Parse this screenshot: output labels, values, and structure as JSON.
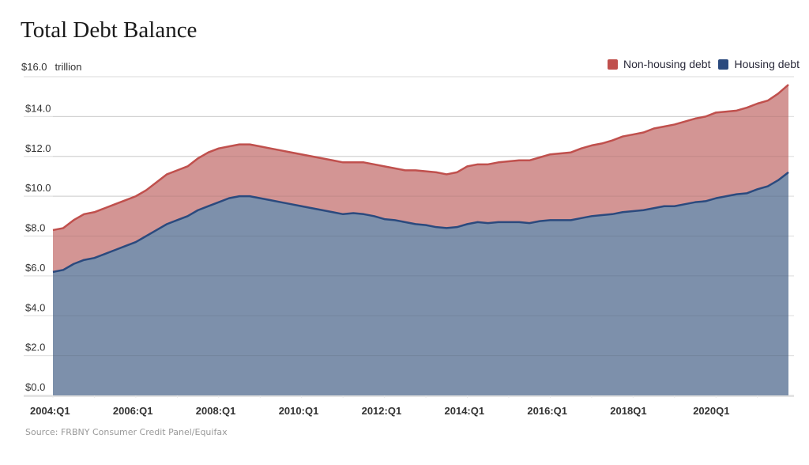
{
  "chart_data": {
    "type": "area",
    "stacked": true,
    "title": "Total Debt Balance",
    "ylabel_unit": "trillion",
    "xlabel": "",
    "ylim": [
      0,
      16
    ],
    "yticks": [
      "$0.0",
      "$2.0",
      "$4.0",
      "$6.0",
      "$8.0",
      "$10.0",
      "$12.0",
      "$14.0",
      "$16.0"
    ],
    "ytick_values": [
      0,
      2,
      4,
      6,
      8,
      10,
      12,
      14,
      16
    ],
    "xticks": [
      "2004:Q1",
      "2006:Q1",
      "2008:Q1",
      "2010:Q1",
      "2012:Q1",
      "2014:Q1",
      "2016:Q1",
      "2018Q1",
      "2020Q1"
    ],
    "xtick_index": [
      0,
      8,
      16,
      24,
      32,
      40,
      48,
      56,
      64
    ],
    "x_start": "2004Q1",
    "x_end": "2021Q4",
    "grid": true,
    "legend_position": "top-right",
    "source": "Source: FRBNY Consumer Credit Panel/Equifax",
    "colors": {
      "non_housing_fill": "#d39594",
      "non_housing_line": "#c0504d",
      "housing_fill": "#7d90ab",
      "housing_line": "#2b4a7e",
      "legend_non_housing": "#c0504d",
      "legend_housing": "#2b4a7e"
    },
    "series": [
      {
        "name": "Housing debt",
        "values": [
          6.2,
          6.3,
          6.6,
          6.8,
          6.9,
          7.1,
          7.3,
          7.5,
          7.7,
          8.0,
          8.3,
          8.6,
          8.8,
          9.0,
          9.3,
          9.5,
          9.7,
          9.9,
          10.0,
          10.0,
          9.9,
          9.8,
          9.7,
          9.6,
          9.5,
          9.4,
          9.3,
          9.2,
          9.1,
          9.15,
          9.1,
          9.0,
          8.85,
          8.8,
          8.7,
          8.6,
          8.55,
          8.45,
          8.4,
          8.45,
          8.6,
          8.7,
          8.65,
          8.7,
          8.7,
          8.7,
          8.65,
          8.75,
          8.8,
          8.8,
          8.8,
          8.9,
          9.0,
          9.05,
          9.1,
          9.2,
          9.25,
          9.3,
          9.4,
          9.5,
          9.5,
          9.6,
          9.7,
          9.75,
          9.9,
          10.0,
          10.1,
          10.15,
          10.35,
          10.5,
          10.8,
          11.2
        ]
      },
      {
        "name": "Non-housing debt",
        "values": [
          2.1,
          2.1,
          2.2,
          2.3,
          2.3,
          2.3,
          2.3,
          2.3,
          2.3,
          2.3,
          2.4,
          2.5,
          2.5,
          2.5,
          2.6,
          2.7,
          2.7,
          2.6,
          2.6,
          2.6,
          2.6,
          2.6,
          2.6,
          2.6,
          2.6,
          2.6,
          2.6,
          2.6,
          2.6,
          2.55,
          2.6,
          2.6,
          2.65,
          2.6,
          2.6,
          2.7,
          2.7,
          2.75,
          2.7,
          2.75,
          2.9,
          2.9,
          2.95,
          3.0,
          3.05,
          3.1,
          3.15,
          3.2,
          3.3,
          3.35,
          3.4,
          3.5,
          3.55,
          3.6,
          3.7,
          3.8,
          3.85,
          3.9,
          4.0,
          4.0,
          4.1,
          4.15,
          4.2,
          4.25,
          4.3,
          4.25,
          4.2,
          4.3,
          4.3,
          4.3,
          4.35,
          4.4
        ]
      }
    ]
  }
}
